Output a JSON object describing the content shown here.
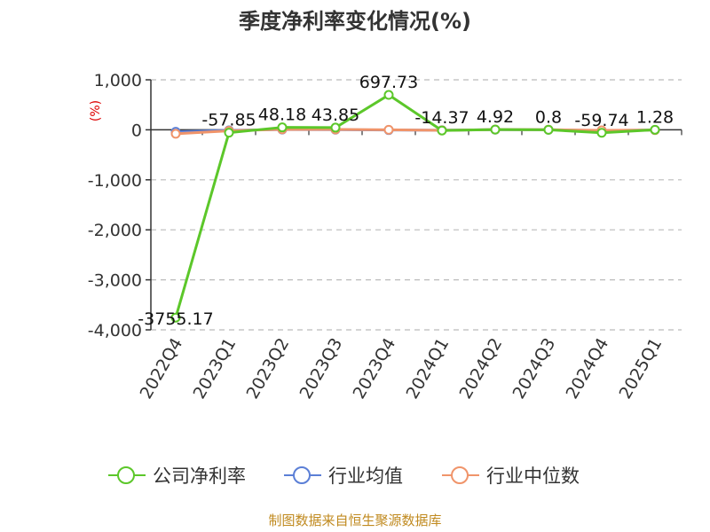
{
  "chart_data": {
    "type": "line",
    "title": "季度净利率变化情况(%)",
    "ylabel": "(%)",
    "ylim": [
      -4000,
      1000
    ],
    "yticks": [
      1000,
      0,
      -1000,
      -2000,
      -3000,
      -4000
    ],
    "ytick_labels": [
      "1,000",
      "0",
      "-1,000",
      "-2,000",
      "-3,000",
      "-4,000"
    ],
    "categories": [
      "2022Q4",
      "2023Q1",
      "2023Q2",
      "2023Q3",
      "2023Q4",
      "2024Q1",
      "2024Q2",
      "2024Q3",
      "2024Q4",
      "2025Q1"
    ],
    "grid": true,
    "legend_position": "bottom",
    "series": [
      {
        "name": "公司净利率",
        "color": "#5cc72a",
        "values": [
          -3755.17,
          -57.85,
          48.18,
          43.85,
          697.73,
          -14.37,
          4.92,
          0.8,
          -59.74,
          1.28
        ],
        "labels": [
          "-3755.17",
          "-57.85",
          "48.18",
          "43.85",
          "697.73",
          "-14.37",
          "4.92",
          "0.8",
          "-59.74",
          "1.28"
        ]
      },
      {
        "name": "行业均值",
        "color": "#5b7fd6",
        "values": [
          -40,
          -10,
          5,
          3,
          -5,
          -8,
          2,
          1,
          -15,
          -3
        ]
      },
      {
        "name": "行业中位数",
        "color": "#f0946a",
        "values": [
          -80,
          -20,
          10,
          8,
          0,
          -10,
          5,
          2,
          -10,
          -5
        ]
      }
    ]
  },
  "footer": {
    "source": "制图数据来自恒生聚源数据库"
  }
}
